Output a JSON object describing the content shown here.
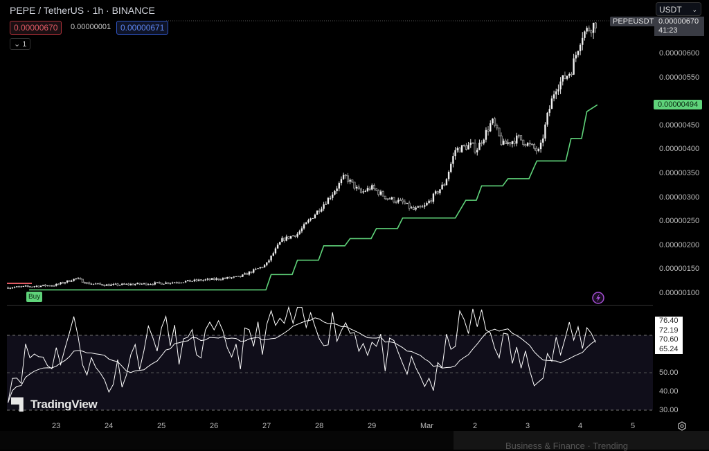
{
  "header": {
    "title": "PEPE / TetherUS · 1h · BINANCE",
    "bid": "0.00000670",
    "spread": "0.00000001",
    "ask": "0.00000671",
    "collapse_label": "1",
    "currency": "USDT"
  },
  "price_axis": {
    "labels": [
      "0.00000600",
      "0.00000550",
      "0.00000450",
      "0.00000400",
      "0.00000350",
      "0.00000300",
      "0.00000250",
      "0.00000200",
      "0.00000150",
      "0.00000100"
    ],
    "symbol_tag": "PEPEUSDT",
    "last_price": "0.00000670",
    "countdown": "41:23",
    "supertrend_tag": "0.00000494"
  },
  "buy_label": "Buy",
  "rsi_axis": {
    "labels": [
      "50.00",
      "40.00",
      "30.00"
    ],
    "values": [
      "76.40",
      "72.19",
      "70.60",
      "65.24"
    ]
  },
  "time_axis": [
    "23",
    "24",
    "25",
    "26",
    "27",
    "28",
    "29",
    "Mar",
    "2",
    "3",
    "4",
    "5"
  ],
  "watermark": "TradingView",
  "bottom": {
    "trending": "Business & Finance · Trending"
  },
  "colors": {
    "supertrend": "#5fd37a",
    "bid": "#e05a63",
    "ask": "#5c84ef",
    "rsi_band": "#100e1a",
    "alert": "#a64fd6"
  },
  "chart_data": {
    "type": "candlestick",
    "symbol": "PEPEUSDT",
    "interval": "1h",
    "price_unit": "1e-8 USDT",
    "price_range": [
      80,
      700
    ],
    "close_path": [
      [
        22.1,
        113
      ],
      [
        23,
        118
      ],
      [
        23.4,
        132
      ],
      [
        23.6,
        122
      ],
      [
        24,
        118
      ],
      [
        25,
        122
      ],
      [
        26,
        130
      ],
      [
        26.5,
        135
      ],
      [
        27,
        160
      ],
      [
        27.3,
        212
      ],
      [
        27.6,
        225
      ],
      [
        28,
        275
      ],
      [
        28.2,
        300
      ],
      [
        28.5,
        345
      ],
      [
        28.8,
        310
      ],
      [
        29,
        322
      ],
      [
        29.3,
        300
      ],
      [
        29.6,
        290
      ],
      [
        29.8,
        275
      ],
      [
        30,
        280
      ],
      [
        30.4,
        330
      ],
      [
        30.6,
        400
      ],
      [
        30.9,
        410
      ],
      [
        31,
        400
      ],
      [
        31.3,
        460
      ],
      [
        31.5,
        410
      ],
      [
        31.8,
        425
      ],
      [
        32,
        410
      ],
      [
        32.2,
        395
      ],
      [
        32.35,
        470
      ],
      [
        32.5,
        530
      ],
      [
        32.8,
        565
      ],
      [
        33,
        640
      ],
      [
        33.3,
        668
      ]
    ],
    "supertrend": [
      [
        22.5,
        108
      ],
      [
        27,
        108
      ],
      [
        27.1,
        140
      ],
      [
        27.5,
        140
      ],
      [
        27.6,
        170
      ],
      [
        28,
        170
      ],
      [
        28.1,
        200
      ],
      [
        28.5,
        200
      ],
      [
        28.6,
        215
      ],
      [
        29,
        215
      ],
      [
        29.1,
        236
      ],
      [
        29.5,
        236
      ],
      [
        29.6,
        258
      ],
      [
        30.6,
        258
      ],
      [
        30.8,
        295
      ],
      [
        31,
        295
      ],
      [
        31.1,
        325
      ],
      [
        31.5,
        325
      ],
      [
        31.6,
        340
      ],
      [
        32,
        340
      ],
      [
        32.1,
        365
      ],
      [
        32.15,
        377
      ],
      [
        32.7,
        377
      ],
      [
        32.8,
        424
      ],
      [
        33.0,
        424
      ],
      [
        33.1,
        480
      ],
      [
        33.3,
        494
      ]
    ],
    "rsi_path": [
      [
        22.1,
        45
      ],
      [
        22.5,
        60
      ],
      [
        23,
        58
      ],
      [
        23.4,
        75
      ],
      [
        23.6,
        55
      ],
      [
        24,
        45
      ],
      [
        24.5,
        60
      ],
      [
        25,
        72
      ],
      [
        25.5,
        62
      ],
      [
        26,
        68
      ],
      [
        26.5,
        62
      ],
      [
        27,
        72
      ],
      [
        27.5,
        78
      ],
      [
        28,
        74
      ],
      [
        28.5,
        76
      ],
      [
        29,
        65
      ],
      [
        29.5,
        55
      ],
      [
        30,
        47
      ],
      [
        30.3,
        45
      ],
      [
        30.5,
        70
      ],
      [
        31,
        78
      ],
      [
        31.5,
        65
      ],
      [
        32,
        52
      ],
      [
        32.5,
        62
      ],
      [
        33,
        70
      ],
      [
        33.3,
        72
      ]
    ],
    "rsi_levels": [
      70,
      50,
      30
    ]
  }
}
